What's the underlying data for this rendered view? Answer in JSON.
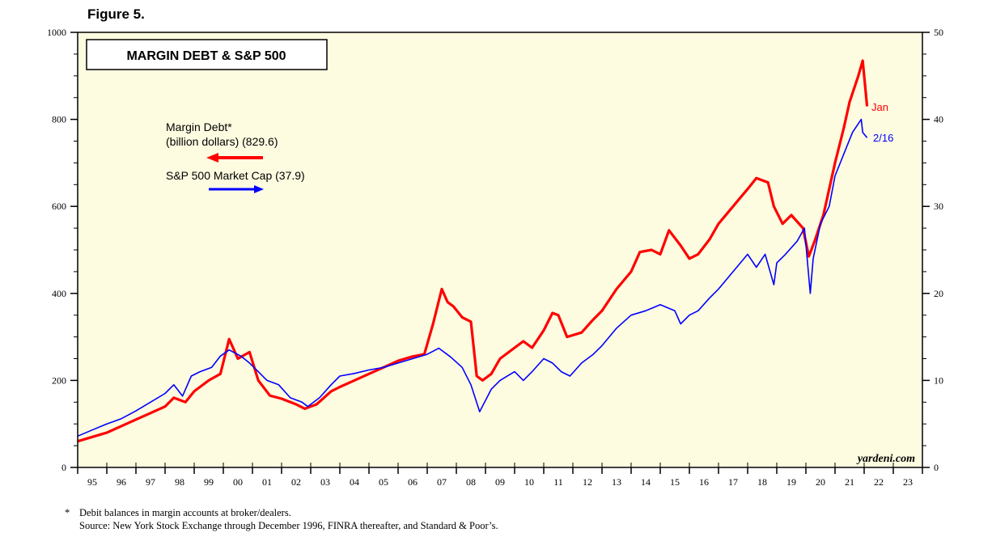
{
  "figure_label": "Figure 5.",
  "footnotes": {
    "marker": "*",
    "line1": "Debit balances in margin accounts at broker/dealers.",
    "line2": "Source: New York Stock Exchange through December 1996, FINRA thereafter, and Standard & Poor’s."
  },
  "colors": {
    "plot_bg": "#fdfbe0",
    "margin_debt": "#ff0000",
    "sp500": "#0000ff",
    "axis": "#000000"
  },
  "chart_data": {
    "type": "line",
    "title": "MARGIN DEBT & S&P 500",
    "watermark": "yardeni.com",
    "x_ticks": [
      "95",
      "96",
      "97",
      "98",
      "99",
      "00",
      "01",
      "02",
      "03",
      "04",
      "05",
      "06",
      "07",
      "08",
      "09",
      "10",
      "11",
      "12",
      "13",
      "14",
      "15",
      "16",
      "17",
      "18",
      "19",
      "20",
      "21",
      "22",
      "23"
    ],
    "xlim": [
      1995.0,
      2024.0
    ],
    "left_axis": {
      "ticks": [
        0,
        200,
        400,
        600,
        800,
        1000
      ],
      "ylim": [
        0,
        1000
      ]
    },
    "right_axis": {
      "ticks": [
        0,
        10,
        20,
        30,
        40,
        50
      ],
      "ylim": [
        0,
        50
      ]
    },
    "legend": {
      "margin_debt_line1": "Margin Debt*",
      "margin_debt_line2": "(billion dollars) (829.6)",
      "sp500_label": "S&P 500 Market Cap (37.9)"
    },
    "end_labels": {
      "margin_debt": "Jan",
      "sp500": "2/16"
    },
    "series": [
      {
        "name": "Margin Debt* (billion dollars) (829.6)",
        "axis": "left",
        "x": [
          1995.0,
          1995.5,
          1996.0,
          1996.5,
          1997.0,
          1997.5,
          1998.0,
          1998.3,
          1998.7,
          1999.0,
          1999.5,
          1999.9,
          2000.2,
          2000.5,
          2000.9,
          2001.2,
          2001.6,
          2002.0,
          2002.5,
          2002.8,
          2003.2,
          2003.7,
          2004.0,
          2004.5,
          2005.0,
          2005.5,
          2006.0,
          2006.5,
          2006.9,
          2007.2,
          2007.5,
          2007.7,
          2007.9,
          2008.2,
          2008.5,
          2008.7,
          2008.9,
          2009.2,
          2009.5,
          2010.0,
          2010.3,
          2010.6,
          2011.0,
          2011.3,
          2011.5,
          2011.8,
          2012.3,
          2012.7,
          2013.0,
          2013.5,
          2014.0,
          2014.3,
          2014.7,
          2015.0,
          2015.3,
          2015.7,
          2016.0,
          2016.3,
          2016.7,
          2017.0,
          2017.5,
          2018.0,
          2018.3,
          2018.7,
          2018.9,
          2019.2,
          2019.5,
          2019.9,
          2020.1,
          2020.3,
          2020.6,
          2021.0,
          2021.3,
          2021.5,
          2021.8,
          2021.95,
          2022.1
        ],
        "values": [
          60,
          70,
          80,
          95,
          110,
          125,
          140,
          160,
          150,
          175,
          200,
          215,
          295,
          250,
          265,
          200,
          165,
          158,
          145,
          135,
          145,
          175,
          185,
          200,
          215,
          230,
          245,
          255,
          260,
          330,
          410,
          380,
          370,
          345,
          335,
          210,
          200,
          215,
          250,
          275,
          290,
          275,
          315,
          355,
          350,
          300,
          310,
          340,
          360,
          410,
          450,
          495,
          500,
          490,
          545,
          510,
          480,
          490,
          525,
          560,
          600,
          640,
          665,
          655,
          600,
          560,
          580,
          550,
          485,
          520,
          580,
          700,
          780,
          840,
          900,
          935,
          830
        ]
      },
      {
        "name": "S&P 500 Market Cap (37.9)",
        "axis": "right",
        "x": [
          1995.0,
          1995.5,
          1996.0,
          1996.5,
          1997.0,
          1997.5,
          1998.0,
          1998.3,
          1998.6,
          1998.9,
          1999.2,
          1999.6,
          1999.9,
          2000.2,
          2000.6,
          2000.9,
          2001.2,
          2001.5,
          2001.9,
          2002.3,
          2002.7,
          2002.9,
          2003.3,
          2003.7,
          2004.0,
          2004.5,
          2005.0,
          2005.5,
          2006.0,
          2006.5,
          2007.0,
          2007.4,
          2007.8,
          2008.2,
          2008.5,
          2008.8,
          2009.2,
          2009.5,
          2010.0,
          2010.3,
          2010.6,
          2011.0,
          2011.3,
          2011.6,
          2011.9,
          2012.3,
          2012.7,
          2013.0,
          2013.5,
          2014.0,
          2014.5,
          2015.0,
          2015.5,
          2015.7,
          2016.0,
          2016.3,
          2016.7,
          2017.0,
          2017.5,
          2018.0,
          2018.3,
          2018.6,
          2018.9,
          2019.0,
          2019.3,
          2019.7,
          2019.95,
          2020.15,
          2020.25,
          2020.5,
          2020.8,
          2021.0,
          2021.3,
          2021.6,
          2021.9,
          2021.95,
          2022.1
        ],
        "values": [
          3.6,
          4.3,
          5.0,
          5.6,
          6.5,
          7.5,
          8.5,
          9.5,
          8.2,
          10.5,
          11.0,
          11.5,
          12.8,
          13.5,
          12.8,
          12.0,
          11.0,
          10.0,
          9.5,
          8.0,
          7.5,
          7.0,
          8.0,
          9.5,
          10.5,
          10.8,
          11.2,
          11.5,
          12.0,
          12.5,
          13.0,
          13.7,
          12.7,
          11.5,
          9.5,
          6.4,
          9.0,
          10.0,
          11.0,
          10.0,
          11.0,
          12.5,
          12.0,
          11.0,
          10.5,
          12.0,
          13.0,
          14.0,
          16.0,
          17.5,
          18.0,
          18.7,
          18.0,
          16.5,
          17.5,
          18.0,
          19.5,
          20.5,
          22.5,
          24.5,
          23.0,
          24.5,
          21.0,
          23.5,
          24.5,
          26.0,
          27.5,
          20.0,
          24.0,
          28.0,
          30.0,
          33.5,
          36.0,
          38.5,
          40.0,
          38.5,
          37.9
        ]
      }
    ]
  }
}
